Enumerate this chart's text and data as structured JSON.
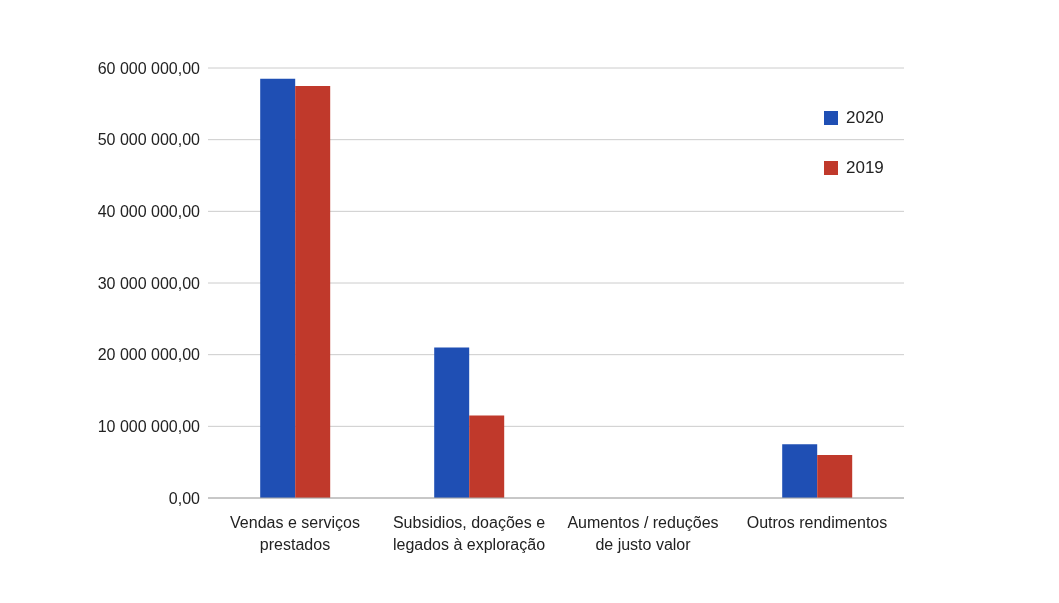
{
  "chart_data": {
    "type": "bar",
    "categories": [
      "Vendas e serviços prestados",
      "Subsidios, doações e legados à exploração",
      "Aumentos / reduções de justo valor",
      "Outros rendimentos"
    ],
    "series": [
      {
        "name": "2020",
        "color": "#1f4fb4",
        "values": [
          58500000,
          21000000,
          0,
          7500000
        ]
      },
      {
        "name": "2019",
        "color": "#c0392b",
        "values": [
          57500000,
          11500000,
          0,
          6000000
        ]
      }
    ],
    "ylim": [
      0,
      60000000
    ],
    "yticks": [
      {
        "value": 0,
        "label": "0,00"
      },
      {
        "value": 10000000,
        "label": "10 000 000,00"
      },
      {
        "value": 20000000,
        "label": "20 000 000,00"
      },
      {
        "value": 30000000,
        "label": "30 000 000,00"
      },
      {
        "value": 40000000,
        "label": "40 000 000,00"
      },
      {
        "value": 50000000,
        "label": "50 000 000,00"
      },
      {
        "value": 60000000,
        "label": "60 000 000,00"
      }
    ],
    "grid": "y",
    "legend": "top right"
  }
}
